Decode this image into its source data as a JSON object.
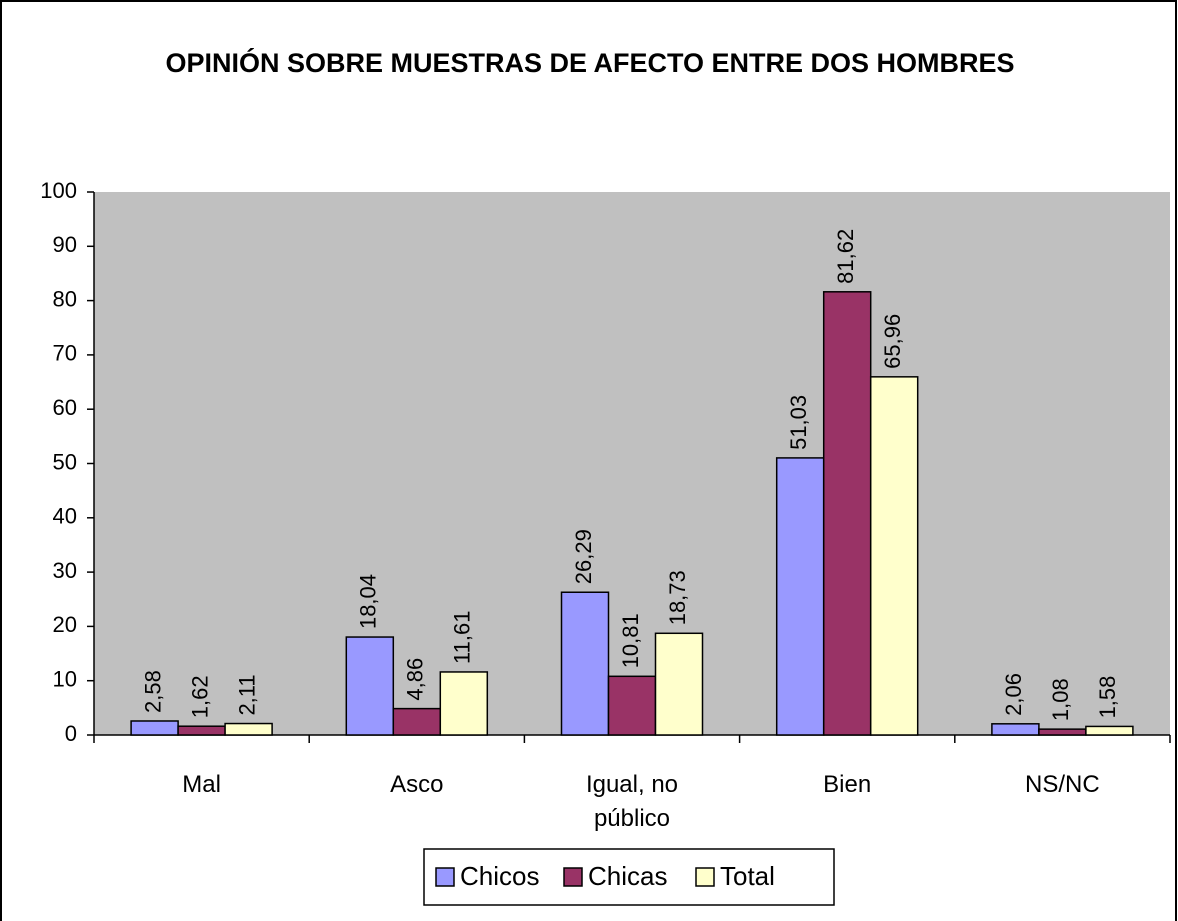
{
  "chart_data": {
    "type": "bar",
    "title": "OPINIÓN SOBRE MUESTRAS DE AFECTO ENTRE DOS HOMBRES",
    "categories": [
      "Mal",
      "Asco",
      "Igual, no público",
      "Bien",
      "NS/NC"
    ],
    "series": [
      {
        "name": "Chicos",
        "color": "#9999ff",
        "values": [
          2.58,
          18.04,
          26.29,
          51.03,
          2.06
        ],
        "value_labels": [
          "2,58",
          "18,04",
          "26,29",
          "51,03",
          "2,06"
        ]
      },
      {
        "name": "Chicas",
        "color": "#993366",
        "values": [
          1.62,
          4.86,
          10.81,
          81.62,
          1.08
        ],
        "value_labels": [
          "1,62",
          "4,86",
          "10,81",
          "81,62",
          "1,08"
        ]
      },
      {
        "name": "Total",
        "color": "#ffffcc",
        "values": [
          2.11,
          11.61,
          18.73,
          65.96,
          1.58
        ],
        "value_labels": [
          "2,11",
          "11,61",
          "18,73",
          "65,96",
          "1,58"
        ]
      }
    ],
    "ylim": [
      0,
      100
    ],
    "yticks": [
      0,
      10,
      20,
      30,
      40,
      50,
      60,
      70,
      80,
      90,
      100
    ],
    "plot_background": "#c0c0c0",
    "legend": "bottom"
  }
}
